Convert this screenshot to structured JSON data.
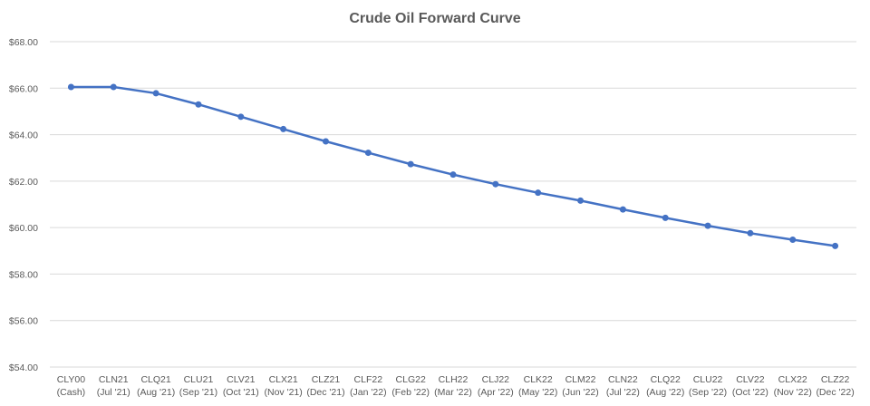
{
  "chart_data": {
    "type": "line",
    "title": "Crude Oil Forward Curve",
    "xlabel": "",
    "ylabel": "",
    "ylim": [
      54,
      68
    ],
    "ytick_step": 2,
    "y_prefix": "$",
    "grid": true,
    "legend": "none",
    "categories": [
      [
        "CLY00",
        "(Cash)"
      ],
      [
        "CLN21",
        "(Jul '21)"
      ],
      [
        "CLQ21",
        "(Aug '21)"
      ],
      [
        "CLU21",
        "(Sep '21)"
      ],
      [
        "CLV21",
        "(Oct '21)"
      ],
      [
        "CLX21",
        "(Nov '21)"
      ],
      [
        "CLZ21",
        "(Dec '21)"
      ],
      [
        "CLF22",
        "(Jan '22)"
      ],
      [
        "CLG22",
        "(Feb '22)"
      ],
      [
        "CLH22",
        "(Mar '22)"
      ],
      [
        "CLJ22",
        "(Apr '22)"
      ],
      [
        "CLK22",
        "(May '22)"
      ],
      [
        "CLM22",
        "(Jun '22)"
      ],
      [
        "CLN22",
        "(Jul '22)"
      ],
      [
        "CLQ22",
        "(Aug '22)"
      ],
      [
        "CLU22",
        "(Sep '22)"
      ],
      [
        "CLV22",
        "(Oct '22)"
      ],
      [
        "CLX22",
        "(Nov '22)"
      ],
      [
        "CLZ22",
        "(Dec '22)"
      ]
    ],
    "series": [
      {
        "color": "#4472c4",
        "values": [
          66.05,
          66.05,
          65.78,
          65.3,
          64.77,
          64.24,
          63.71,
          63.22,
          62.73,
          62.28,
          61.87,
          61.5,
          61.16,
          60.78,
          60.42,
          60.08,
          59.76,
          59.48,
          59.21
        ]
      }
    ]
  }
}
